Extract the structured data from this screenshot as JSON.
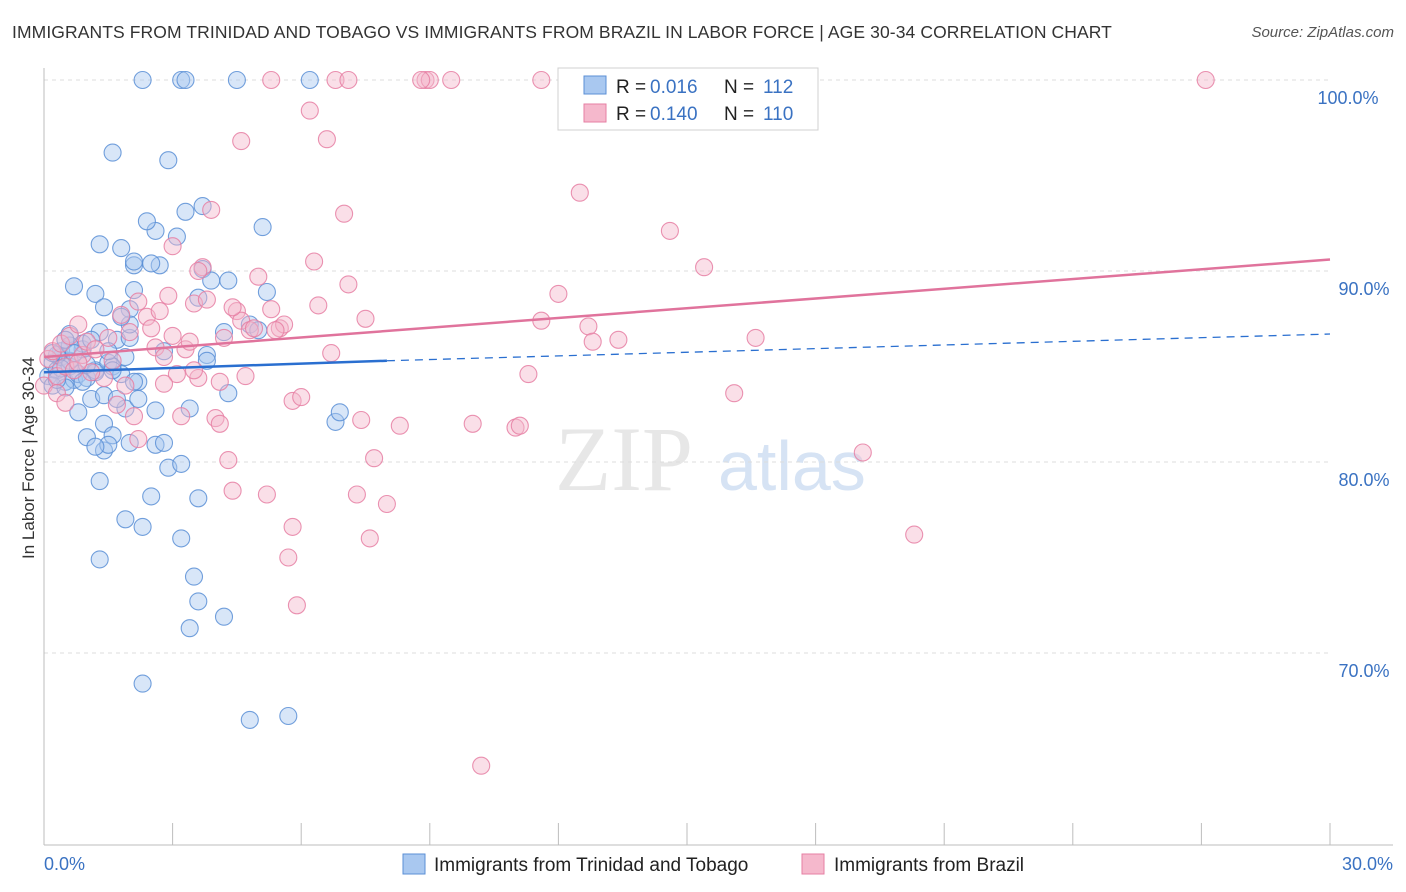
{
  "title": "IMMIGRANTS FROM TRINIDAD AND TOBAGO VS IMMIGRANTS FROM BRAZIL IN LABOR FORCE | AGE 30-34 CORRELATION CHART",
  "source": "Source: ZipAtlas.com",
  "watermark": {
    "zip": "ZIP",
    "atlas": "atlas"
  },
  "colors": {
    "blue_fill": "#a9c8f0",
    "blue_stroke": "#5b8fd6",
    "blue_line": "#2a6fd0",
    "pink_fill": "#f5b8cc",
    "pink_stroke": "#e67fa3",
    "pink_line": "#e0739c",
    "tick_label": "#3a72c2",
    "grid": "#dcdcdc"
  },
  "chart_data": {
    "type": "scatter",
    "xlabel": "",
    "ylabel": "In Labor Force | Age 30-34",
    "xlim": [
      0,
      30
    ],
    "ylim": [
      60.5,
      101.8
    ],
    "x_tick_labels": {
      "min": "0.0%",
      "max": "30.0%"
    },
    "y_ticks": [
      {
        "value": 100,
        "label": "100.0%"
      },
      {
        "value": 90,
        "label": "90.0%"
      },
      {
        "value": 80,
        "label": "80.0%"
      },
      {
        "value": 70,
        "label": "70.0%"
      }
    ],
    "legend": {
      "position": "top-center",
      "entries": [
        {
          "r_label": "R = ",
          "r_value": "0.016",
          "n_label": "N = ",
          "n_value": "112"
        },
        {
          "r_label": "R = ",
          "r_value": "0.140",
          "n_label": "N = ",
          "n_value": "110"
        }
      ]
    },
    "series": [
      {
        "name": "Immigrants from Trinidad and Tobago",
        "trend": {
          "solid": [
            [
              0,
              84.7
            ],
            [
              8,
              85.3
            ]
          ],
          "dashed": [
            [
              8,
              85.3
            ],
            [
              30,
              86.7
            ]
          ]
        },
        "points": [
          [
            0.1,
            84.5
          ],
          [
            0.2,
            85.2
          ],
          [
            0.3,
            84.8
          ],
          [
            0.4,
            85.5
          ],
          [
            0.5,
            84.2
          ],
          [
            0.6,
            85.0
          ],
          [
            0.2,
            84.0
          ],
          [
            0.4,
            85.8
          ],
          [
            0.7,
            84.3
          ],
          [
            0.8,
            84.6
          ],
          [
            1.0,
            84.4
          ],
          [
            0.6,
            85.3
          ],
          [
            0.3,
            85.6
          ],
          [
            0.9,
            85.9
          ],
          [
            0.5,
            83.9
          ],
          [
            1.2,
            84.8
          ],
          [
            1.5,
            85.2
          ],
          [
            1.1,
            83.3
          ],
          [
            0.8,
            82.6
          ],
          [
            1.4,
            83.5
          ],
          [
            0.6,
            86.7
          ],
          [
            0.9,
            86.2
          ],
          [
            1.3,
            86.8
          ],
          [
            1.7,
            86.4
          ],
          [
            2.0,
            86.5
          ],
          [
            1.6,
            85.0
          ],
          [
            1.8,
            84.6
          ],
          [
            1.9,
            85.5
          ],
          [
            2.2,
            84.2
          ],
          [
            1.4,
            82.0
          ],
          [
            1.6,
            81.4
          ],
          [
            1.9,
            82.8
          ],
          [
            2.2,
            83.3
          ],
          [
            1.0,
            81.3
          ],
          [
            1.4,
            80.6
          ],
          [
            1.5,
            80.9
          ],
          [
            2.6,
            80.9
          ],
          [
            2.8,
            81.0
          ],
          [
            1.2,
            80.8
          ],
          [
            1.3,
            79.0
          ],
          [
            2.9,
            79.7
          ],
          [
            3.2,
            79.9
          ],
          [
            2.5,
            78.2
          ],
          [
            3.6,
            78.1
          ],
          [
            1.9,
            77.0
          ],
          [
            2.3,
            76.6
          ],
          [
            3.2,
            76.0
          ],
          [
            1.3,
            74.9
          ],
          [
            3.5,
            74.0
          ],
          [
            3.6,
            72.7
          ],
          [
            3.4,
            71.3
          ],
          [
            4.2,
            71.9
          ],
          [
            2.3,
            68.4
          ],
          [
            4.8,
            66.5
          ],
          [
            5.7,
            66.7
          ],
          [
            0.7,
            89.2
          ],
          [
            1.2,
            88.8
          ],
          [
            2.0,
            88.0
          ],
          [
            2.1,
            89.0
          ],
          [
            2.7,
            90.3
          ],
          [
            2.5,
            90.4
          ],
          [
            3.7,
            90.1
          ],
          [
            3.6,
            88.6
          ],
          [
            3.9,
            89.5
          ],
          [
            4.3,
            89.5
          ],
          [
            5.2,
            88.9
          ],
          [
            1.3,
            91.4
          ],
          [
            1.8,
            91.2
          ],
          [
            2.1,
            90.3
          ],
          [
            2.1,
            90.5
          ],
          [
            3.1,
            91.8
          ],
          [
            2.6,
            92.1
          ],
          [
            3.3,
            93.1
          ],
          [
            3.7,
            93.4
          ],
          [
            5.1,
            92.3
          ],
          [
            2.4,
            92.6
          ],
          [
            2.9,
            95.8
          ],
          [
            1.6,
            96.2
          ],
          [
            2.3,
            100
          ],
          [
            3.2,
            100
          ],
          [
            3.3,
            100
          ],
          [
            4.5,
            100
          ],
          [
            6.2,
            100
          ],
          [
            4.2,
            86.8
          ],
          [
            4.8,
            87.2
          ],
          [
            3.8,
            85.6
          ],
          [
            3.8,
            85.3
          ],
          [
            5.0,
            86.9
          ],
          [
            3.4,
            82.8
          ],
          [
            4.3,
            83.6
          ],
          [
            6.8,
            82.1
          ],
          [
            6.9,
            82.6
          ],
          [
            2.6,
            82.7
          ],
          [
            2.1,
            84.2
          ],
          [
            2.0,
            81.0
          ],
          [
            1.7,
            83.3
          ],
          [
            1.5,
            85.8
          ],
          [
            1.2,
            84.7
          ],
          [
            0.9,
            84.2
          ],
          [
            0.6,
            86.1
          ],
          [
            0.2,
            85.7
          ],
          [
            0.4,
            84.9
          ],
          [
            1.1,
            86.4
          ],
          [
            2.8,
            85.8
          ],
          [
            2.0,
            87.2
          ],
          [
            1.8,
            87.6
          ],
          [
            1.4,
            88.1
          ],
          [
            1.0,
            85.1
          ],
          [
            0.5,
            86.4
          ],
          [
            0.3,
            84.3
          ],
          [
            0.7,
            85.7
          ],
          [
            1.6,
            84.8
          ]
        ]
      },
      {
        "name": "Immigrants from Brazil",
        "trend": {
          "solid": [
            [
              0,
              85.5
            ],
            [
              30,
              90.6
            ]
          ]
        },
        "points": [
          [
            0.0,
            84.0
          ],
          [
            0.1,
            85.4
          ],
          [
            0.2,
            85.8
          ],
          [
            0.3,
            84.5
          ],
          [
            0.4,
            86.2
          ],
          [
            0.5,
            85.0
          ],
          [
            0.6,
            86.6
          ],
          [
            0.7,
            84.8
          ],
          [
            0.8,
            87.2
          ],
          [
            0.9,
            85.6
          ],
          [
            0.3,
            83.6
          ],
          [
            0.5,
            83.1
          ],
          [
            1.0,
            86.3
          ],
          [
            1.2,
            85.9
          ],
          [
            1.4,
            84.4
          ],
          [
            1.5,
            86.5
          ],
          [
            1.6,
            85.3
          ],
          [
            1.8,
            87.7
          ],
          [
            1.9,
            84.0
          ],
          [
            2.0,
            86.8
          ],
          [
            2.1,
            82.4
          ],
          [
            2.2,
            81.2
          ],
          [
            2.4,
            87.6
          ],
          [
            2.6,
            86.0
          ],
          [
            2.7,
            87.9
          ],
          [
            2.8,
            85.5
          ],
          [
            2.9,
            88.7
          ],
          [
            3.0,
            86.6
          ],
          [
            3.1,
            84.6
          ],
          [
            3.2,
            82.4
          ],
          [
            3.3,
            85.9
          ],
          [
            3.4,
            86.3
          ],
          [
            3.5,
            88.3
          ],
          [
            3.6,
            84.4
          ],
          [
            3.7,
            90.2
          ],
          [
            3.8,
            88.5
          ],
          [
            3.9,
            93.2
          ],
          [
            4.0,
            82.3
          ],
          [
            4.1,
            82.0
          ],
          [
            4.2,
            86.5
          ],
          [
            4.3,
            80.1
          ],
          [
            4.4,
            78.5
          ],
          [
            4.5,
            87.9
          ],
          [
            4.6,
            87.4
          ],
          [
            4.7,
            84.5
          ],
          [
            4.8,
            86.9
          ],
          [
            4.9,
            87.0
          ],
          [
            5.0,
            89.7
          ],
          [
            5.2,
            78.3
          ],
          [
            5.3,
            88.0
          ],
          [
            5.5,
            87.0
          ],
          [
            5.6,
            87.2
          ],
          [
            5.8,
            76.6
          ],
          [
            5.9,
            72.5
          ],
          [
            5.7,
            75.0
          ],
          [
            5.8,
            83.2
          ],
          [
            6.0,
            83.4
          ],
          [
            6.2,
            98.4
          ],
          [
            6.3,
            90.5
          ],
          [
            6.4,
            88.2
          ],
          [
            6.6,
            96.9
          ],
          [
            6.7,
            85.7
          ],
          [
            7.0,
            93.0
          ],
          [
            7.1,
            89.3
          ],
          [
            7.3,
            78.3
          ],
          [
            7.4,
            82.2
          ],
          [
            7.5,
            87.5
          ],
          [
            7.7,
            80.2
          ],
          [
            8.0,
            77.8
          ],
          [
            7.6,
            76.0
          ],
          [
            8.3,
            81.9
          ],
          [
            8.9,
            100
          ],
          [
            9.0,
            100
          ],
          [
            8.8,
            100
          ],
          [
            9.5,
            100
          ],
          [
            10.0,
            82.0
          ],
          [
            10.2,
            64.1
          ],
          [
            11.0,
            81.8
          ],
          [
            11.1,
            81.9
          ],
          [
            11.3,
            84.6
          ],
          [
            11.6,
            100
          ],
          [
            11.6,
            87.4
          ],
          [
            12.0,
            88.8
          ],
          [
            12.5,
            94.1
          ],
          [
            12.7,
            87.1
          ],
          [
            12.8,
            86.3
          ],
          [
            13.4,
            86.4
          ],
          [
            14.6,
            92.1
          ],
          [
            15.4,
            90.2
          ],
          [
            16.1,
            83.6
          ],
          [
            16.6,
            86.5
          ],
          [
            19.1,
            80.5
          ],
          [
            20.3,
            76.2
          ],
          [
            27.1,
            100
          ],
          [
            6.8,
            100
          ],
          [
            7.1,
            100
          ],
          [
            5.3,
            100
          ],
          [
            4.6,
            96.8
          ],
          [
            2.5,
            87.0
          ],
          [
            1.7,
            83.0
          ],
          [
            3.6,
            90.0
          ],
          [
            4.1,
            84.2
          ],
          [
            3.0,
            91.3
          ],
          [
            2.2,
            88.4
          ],
          [
            1.1,
            84.7
          ],
          [
            0.8,
            85.2
          ],
          [
            2.8,
            84.1
          ],
          [
            3.5,
            84.8
          ],
          [
            4.4,
            88.1
          ],
          [
            5.4,
            86.9
          ]
        ]
      }
    ]
  }
}
